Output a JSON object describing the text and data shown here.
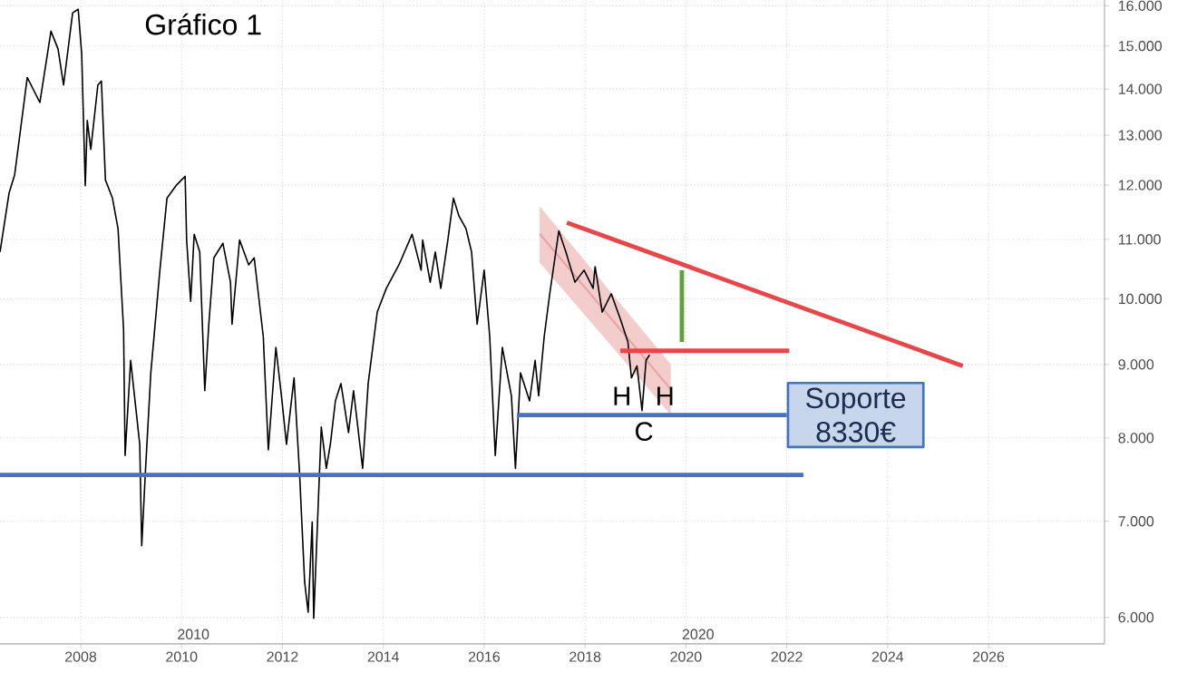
{
  "chart_data": {
    "type": "line",
    "title": "Gráfico 1",
    "log": "y",
    "grid": true,
    "marker": "none",
    "xlim": [
      2006.4,
      2028.3
    ],
    "ylim": [
      5750,
      16150
    ],
    "xticks": [
      2008,
      2010,
      2012,
      2014,
      2016,
      2018,
      2020,
      2022,
      2024,
      2026
    ],
    "yticks": [
      {
        "value": 6000,
        "label": "6.000"
      },
      {
        "value": 7000,
        "label": "7.000"
      },
      {
        "value": 8000,
        "label": "8.000"
      },
      {
        "value": 9000,
        "label": "9.000"
      },
      {
        "value": 10000,
        "label": "10.000"
      },
      {
        "value": 11000,
        "label": "11.000"
      },
      {
        "value": 12000,
        "label": "12.000"
      },
      {
        "value": 13000,
        "label": "13.000"
      },
      {
        "value": 14000,
        "label": "14.000"
      },
      {
        "value": 15000,
        "label": "15.000"
      },
      {
        "value": 16000,
        "label": "16.000"
      }
    ],
    "series": [
      {
        "color": "#e9a3a3",
        "x": [
          2017.1,
          2019.7
        ],
        "values": [
          11100,
          8650
        ],
        "lower": [
          10600,
          8300
        ],
        "upper": [
          11600,
          9000
        ]
      },
      {
        "color": "#000000",
        "x": [
          2006.4,
          2006.58,
          2006.69,
          2006.83,
          2006.94,
          2007.19,
          2007.41,
          2007.55,
          2007.66,
          2007.84,
          2007.95,
          2008.02,
          2008.09,
          2008.13,
          2008.2,
          2008.34,
          2008.41,
          2008.49,
          2008.63,
          2008.74,
          2008.85,
          2008.88,
          2008.99,
          2009.17,
          2009.21,
          2009.28,
          2009.39,
          2009.57,
          2009.71,
          2009.89,
          2010.07,
          2010.1,
          2010.18,
          2010.25,
          2010.36,
          2010.46,
          2010.54,
          2010.64,
          2010.82,
          2010.97,
          2011.0,
          2011.15,
          2011.33,
          2011.44,
          2011.62,
          2011.72,
          2011.87,
          2011.98,
          2012.08,
          2012.23,
          2012.34,
          2012.44,
          2012.51,
          2012.59,
          2012.62,
          2012.77,
          2012.87,
          2012.95,
          2013.05,
          2013.16,
          2013.31,
          2013.41,
          2013.59,
          2013.7,
          2013.88,
          2014.06,
          2014.31,
          2014.57,
          2014.75,
          2014.78,
          2014.93,
          2015.03,
          2015.14,
          2015.28,
          2015.39,
          2015.5,
          2015.64,
          2015.75,
          2015.86,
          2016.0,
          2016.11,
          2016.22,
          2016.36,
          2016.54,
          2016.62,
          2016.72,
          2016.9,
          2017.01,
          2017.08,
          2017.19,
          2017.3,
          2017.48,
          2017.62,
          2017.8,
          2017.98,
          2018.16,
          2018.2,
          2018.34,
          2018.52,
          2018.7,
          2018.85,
          2018.92,
          2019.03,
          2019.13,
          2019.21,
          2019.28
        ],
        "values": [
          10780,
          11850,
          12200,
          13310,
          14260,
          13700,
          15360,
          14930,
          14090,
          15820,
          15910,
          14800,
          11990,
          13310,
          12710,
          14090,
          14180,
          12100,
          11750,
          11190,
          9520,
          7780,
          9060,
          7920,
          6730,
          7550,
          8880,
          10470,
          11750,
          11990,
          12170,
          10990,
          9960,
          11090,
          10780,
          8630,
          9600,
          10680,
          10930,
          10270,
          9600,
          10990,
          10560,
          10680,
          9410,
          7850,
          9250,
          8560,
          7920,
          8810,
          7550,
          6350,
          6050,
          6990,
          5990,
          8140,
          7620,
          7920,
          8490,
          8730,
          8070,
          8630,
          7620,
          8730,
          9790,
          10170,
          10560,
          11090,
          10470,
          10990,
          10270,
          10780,
          10170,
          10990,
          11750,
          11420,
          11190,
          10780,
          9600,
          10470,
          9410,
          7780,
          9250,
          8560,
          7620,
          8880,
          8490,
          9060,
          8560,
          9410,
          10080,
          11150,
          10780,
          10270,
          10470,
          10170,
          10530,
          9790,
          10080,
          9680,
          9330,
          8810,
          8980,
          8360,
          9060,
          9140
        ]
      },
      {
        "color": "#4472c4",
        "x": [
          2006.4,
          2022.33
        ],
        "values": [
          7540,
          7540
        ]
      },
      {
        "name": "Soporte 8330€",
        "color": "#4472c4",
        "x": [
          2016.65,
          2022.0
        ],
        "values": [
          8300,
          8300
        ]
      },
      {
        "color": "#e8474a",
        "x": [
          2018.7,
          2022.05
        ],
        "values": [
          9200,
          9200
        ]
      },
      {
        "color": "#e8474a",
        "x": [
          2017.64,
          2025.49
        ],
        "values": [
          11300,
          8980
        ]
      },
      {
        "color": "#5fa13a",
        "x": [
          2019.92,
          2019.92
        ],
        "values": [
          9330,
          10470
        ]
      }
    ],
    "annotations": [
      "H",
      "H",
      "C",
      "2010",
      "2020"
    ]
  }
}
